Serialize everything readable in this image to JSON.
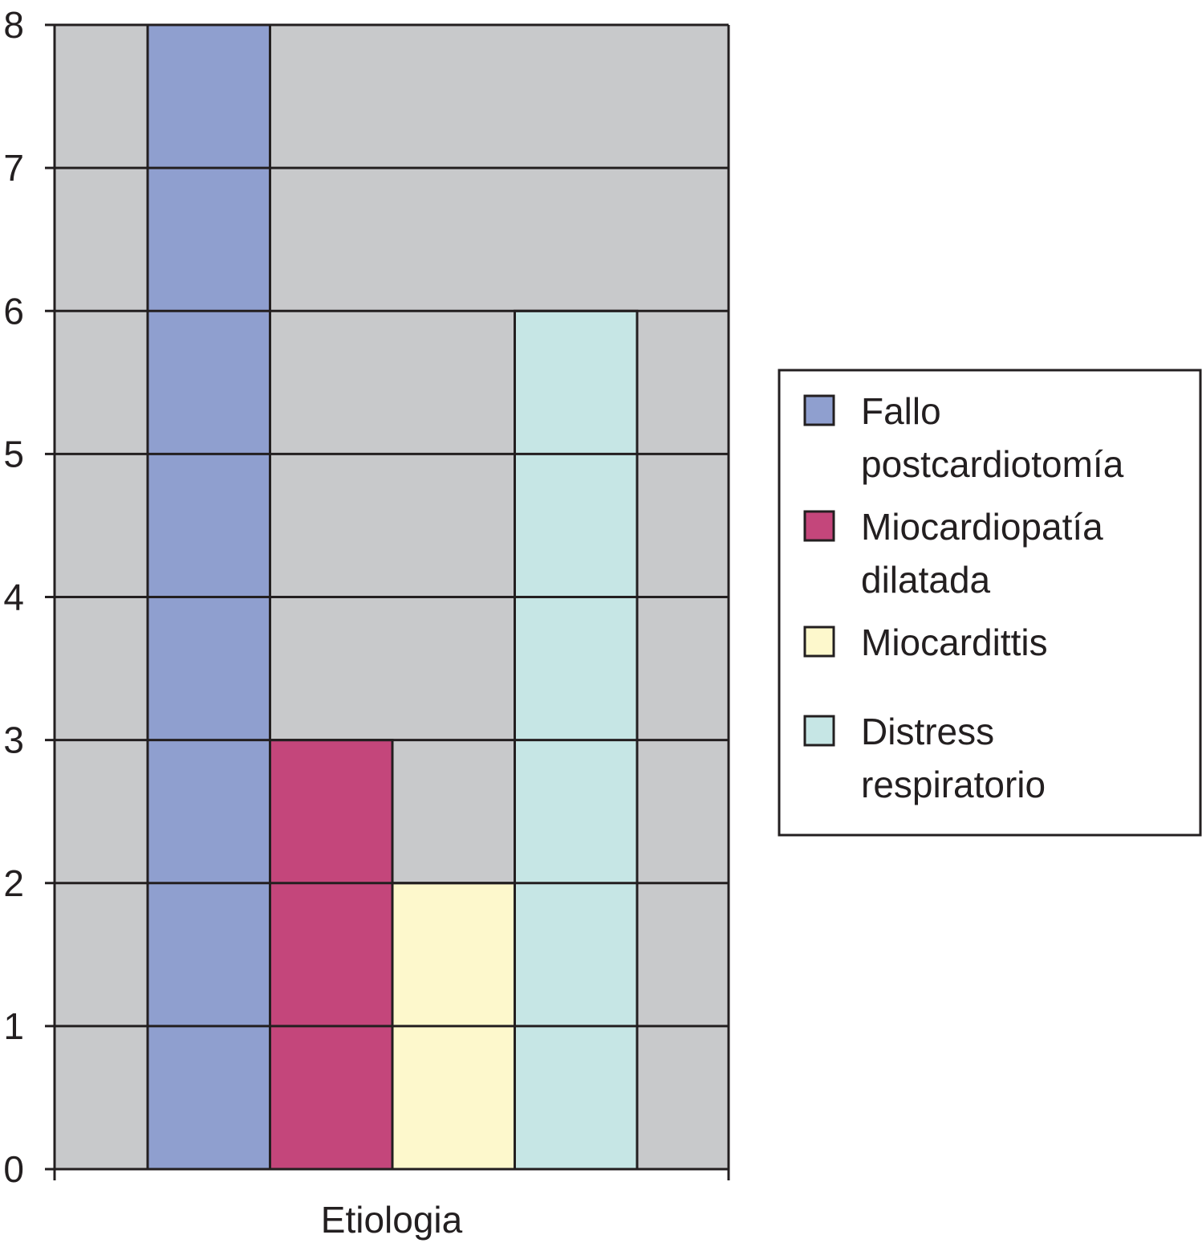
{
  "chart_data": {
    "type": "bar",
    "categories": [
      "Etiologia"
    ],
    "xlabel": "Etiologia",
    "ylabel": "",
    "title": "",
    "ylim": [
      0,
      8
    ],
    "yticks": [
      0,
      1,
      2,
      3,
      4,
      5,
      6,
      7,
      8
    ],
    "grid": true,
    "legend_position": "right",
    "series": [
      {
        "name": "Fallo postcardiotomía",
        "name_lines": [
          "Fallo",
          "postcardiotomía"
        ],
        "values": [
          8
        ],
        "color": "#8f9fcf"
      },
      {
        "name": "Miocardiopatía dilatada",
        "name_lines": [
          "Miocardiopatía",
          "dilatada"
        ],
        "values": [
          3
        ],
        "color": "#c4467b"
      },
      {
        "name": "Miocardittis",
        "name_lines": [
          "Miocardittis"
        ],
        "values": [
          2
        ],
        "color": "#fdf8cc"
      },
      {
        "name": "Distress respiratorio",
        "name_lines": [
          "Distress",
          "respiratorio"
        ],
        "values": [
          6
        ],
        "color": "#c6e6e5"
      }
    ],
    "plot_background": "#c8c9cb",
    "line_color": "#231f20"
  }
}
